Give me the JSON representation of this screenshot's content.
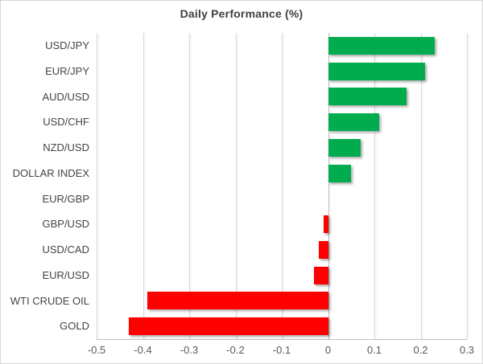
{
  "chart_data": {
    "type": "bar",
    "orientation": "horizontal",
    "title": "Daily Performance (%)",
    "categories": [
      "USD/JPY",
      "EUR/JPY",
      "AUD/USD",
      "USD/CHF",
      "NZD/USD",
      "DOLLAR INDEX",
      "EUR/GBP",
      "GBP/USD",
      "USD/CAD",
      "EUR/USD",
      "WTI CRUDE OIL",
      "GOLD"
    ],
    "values": [
      0.23,
      0.21,
      0.17,
      0.11,
      0.07,
      0.05,
      0.0,
      -0.01,
      -0.02,
      -0.03,
      -0.39,
      -0.43
    ],
    "xlabel": "",
    "ylabel": "",
    "xlim": [
      -0.5,
      0.3
    ],
    "xticks": [
      -0.5,
      -0.4,
      -0.3,
      -0.2,
      -0.1,
      0,
      0.1,
      0.2,
      0.3
    ],
    "xtick_labels": [
      "-0.5",
      "-0.4",
      "-0.3",
      "-0.2",
      "-0.1",
      "0",
      "0.1",
      "0.2",
      "0.3"
    ],
    "grid": "vertical",
    "legend": "none",
    "colors": {
      "positive": "#00AC4E",
      "negative": "#FF0000",
      "gridline": "#d9d9d9",
      "axis_line": "#bfbfbf",
      "title_text": "#404040",
      "label_text": "#444444",
      "tick_text": "#595959"
    }
  }
}
